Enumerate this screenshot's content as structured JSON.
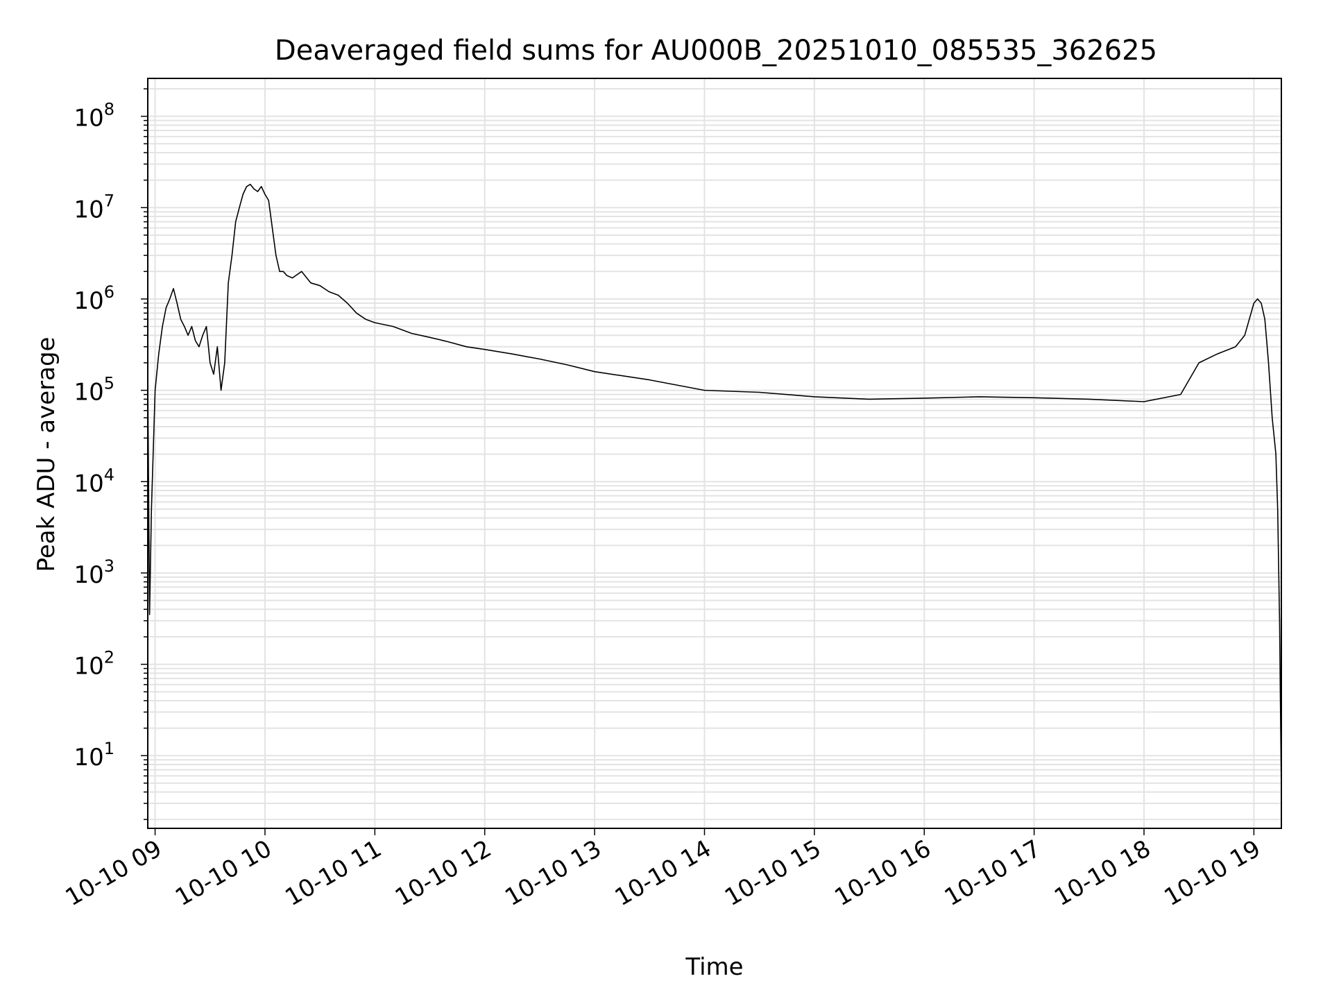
{
  "chart_data": {
    "type": "line",
    "title": "Deaveraged field sums for AU000B_20251010_085535_362625",
    "xlabel": "Time",
    "ylabel": "Peak ADU - average",
    "y_scale": "log",
    "ylim": [
      1.6,
      260000000
    ],
    "xlim": [
      "2025-10-10 08:56",
      "2025-10-10 19:15"
    ],
    "grid": true,
    "x_ticks": [
      "10-10 09",
      "10-10 10",
      "10-10 11",
      "10-10 12",
      "10-10 13",
      "10-10 14",
      "10-10 15",
      "10-10 16",
      "10-10 17",
      "10-10 18",
      "10-10 19"
    ],
    "y_ticks": [
      {
        "base": "10",
        "exp": "1"
      },
      {
        "base": "10",
        "exp": "2"
      },
      {
        "base": "10",
        "exp": "3"
      },
      {
        "base": "10",
        "exp": "4"
      },
      {
        "base": "10",
        "exp": "5"
      },
      {
        "base": "10",
        "exp": "6"
      },
      {
        "base": "10",
        "exp": "7"
      },
      {
        "base": "10",
        "exp": "8"
      }
    ],
    "line_color": "#000000",
    "series": [
      {
        "x": [
          "2025-10-10 08:56",
          "2025-10-10 08:57",
          "2025-10-10 08:58",
          "2025-10-10 09:00",
          "2025-10-10 09:02",
          "2025-10-10 09:04",
          "2025-10-10 09:06",
          "2025-10-10 09:08",
          "2025-10-10 09:10",
          "2025-10-10 09:12",
          "2025-10-10 09:14",
          "2025-10-10 09:16",
          "2025-10-10 09:18",
          "2025-10-10 09:20",
          "2025-10-10 09:22",
          "2025-10-10 09:24",
          "2025-10-10 09:26",
          "2025-10-10 09:28",
          "2025-10-10 09:30",
          "2025-10-10 09:32",
          "2025-10-10 09:34",
          "2025-10-10 09:36",
          "2025-10-10 09:38",
          "2025-10-10 09:40",
          "2025-10-10 09:42",
          "2025-10-10 09:44",
          "2025-10-10 09:46",
          "2025-10-10 09:48",
          "2025-10-10 09:50",
          "2025-10-10 09:52",
          "2025-10-10 09:54",
          "2025-10-10 09:56",
          "2025-10-10 09:58",
          "2025-10-10 10:00",
          "2025-10-10 10:02",
          "2025-10-10 10:04",
          "2025-10-10 10:06",
          "2025-10-10 10:08",
          "2025-10-10 10:10",
          "2025-10-10 10:12",
          "2025-10-10 10:15",
          "2025-10-10 10:20",
          "2025-10-10 10:25",
          "2025-10-10 10:30",
          "2025-10-10 10:35",
          "2025-10-10 10:40",
          "2025-10-10 10:45",
          "2025-10-10 10:50",
          "2025-10-10 10:55",
          "2025-10-10 11:00",
          "2025-10-10 11:10",
          "2025-10-10 11:20",
          "2025-10-10 11:30",
          "2025-10-10 11:40",
          "2025-10-10 11:50",
          "2025-10-10 12:00",
          "2025-10-10 12:15",
          "2025-10-10 12:30",
          "2025-10-10 12:45",
          "2025-10-10 13:00",
          "2025-10-10 13:30",
          "2025-10-10 14:00",
          "2025-10-10 14:30",
          "2025-10-10 15:00",
          "2025-10-10 15:30",
          "2025-10-10 16:00",
          "2025-10-10 16:30",
          "2025-10-10 17:00",
          "2025-10-10 17:30",
          "2025-10-10 18:00",
          "2025-10-10 18:20",
          "2025-10-10 18:30",
          "2025-10-10 18:40",
          "2025-10-10 18:50",
          "2025-10-10 18:55",
          "2025-10-10 19:00",
          "2025-10-10 19:02",
          "2025-10-10 19:04",
          "2025-10-10 19:06",
          "2025-10-10 19:08",
          "2025-10-10 19:10",
          "2025-10-10 19:12",
          "2025-10-10 19:13",
          "2025-10-10 19:14",
          "2025-10-10 19:15"
        ],
        "y": [
          130000,
          350,
          5000,
          100000,
          250000,
          500000,
          800000,
          1000000,
          1300000,
          900000,
          600000,
          500000,
          400000,
          500000,
          350000,
          300000,
          400000,
          500000,
          200000,
          150000,
          300000,
          100000,
          200000,
          1500000,
          3000000,
          7000000,
          10000000,
          14000000,
          17000000,
          18000000,
          16000000,
          15000000,
          17000000,
          14000000,
          12000000,
          6000000,
          3000000,
          2000000,
          2000000,
          1800000,
          1700000,
          2000000,
          1500000,
          1400000,
          1200000,
          1100000,
          900000,
          700000,
          600000,
          550000,
          500000,
          420000,
          380000,
          340000,
          300000,
          280000,
          250000,
          220000,
          190000,
          160000,
          130000,
          100000,
          95000,
          85000,
          80000,
          82000,
          85000,
          83000,
          80000,
          75000,
          90000,
          200000,
          250000,
          300000,
          400000,
          900000,
          1000000,
          900000,
          600000,
          200000,
          50000,
          20000,
          5000,
          300,
          4
        ]
      }
    ]
  }
}
